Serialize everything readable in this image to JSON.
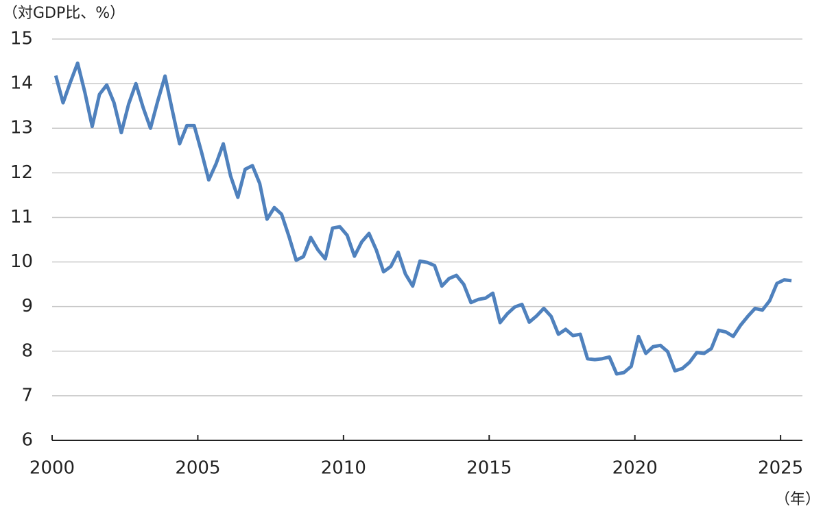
{
  "chart_data": {
    "type": "line",
    "y_axis_label": "（対GDP比、%）",
    "x_axis_label": "（年）",
    "x": [
      2000.125,
      2000.375,
      2000.625,
      2000.875,
      2001.125,
      2001.375,
      2001.625,
      2001.875,
      2002.125,
      2002.375,
      2002.625,
      2002.875,
      2003.125,
      2003.375,
      2003.625,
      2003.875,
      2004.125,
      2004.375,
      2004.625,
      2004.875,
      2005.125,
      2005.375,
      2005.625,
      2005.875,
      2006.125,
      2006.375,
      2006.625,
      2006.875,
      2007.125,
      2007.375,
      2007.625,
      2007.875,
      2008.125,
      2008.375,
      2008.625,
      2008.875,
      2009.125,
      2009.375,
      2009.625,
      2009.875,
      2010.125,
      2010.375,
      2010.625,
      2010.875,
      2011.125,
      2011.375,
      2011.625,
      2011.875,
      2012.125,
      2012.375,
      2012.625,
      2012.875,
      2013.125,
      2013.375,
      2013.625,
      2013.875,
      2014.125,
      2014.375,
      2014.625,
      2014.875,
      2015.125,
      2015.375,
      2015.625,
      2015.875,
      2016.125,
      2016.375,
      2016.625,
      2016.875,
      2017.125,
      2017.375,
      2017.625,
      2017.875,
      2018.125,
      2018.375,
      2018.625,
      2018.875,
      2019.125,
      2019.375,
      2019.625,
      2019.875,
      2020.125,
      2020.375,
      2020.625,
      2020.875,
      2021.125,
      2021.375,
      2021.625,
      2021.875,
      2022.125,
      2022.375,
      2022.625,
      2022.875,
      2023.125,
      2023.375,
      2023.625,
      2023.875,
      2024.125,
      2024.375,
      2024.625,
      2024.875,
      2025.125,
      2025.375
    ],
    "series": [
      {
        "color": "#4f81bd",
        "values": [
          14.18,
          13.57,
          14.03,
          14.46,
          13.8,
          13.04,
          13.76,
          13.97,
          13.57,
          12.9,
          13.54,
          14.0,
          13.46,
          13.0,
          13.61,
          14.17,
          13.4,
          12.65,
          13.06,
          13.06,
          12.47,
          11.84,
          12.2,
          12.65,
          11.93,
          11.45,
          12.08,
          12.16,
          11.76,
          10.96,
          11.22,
          11.07,
          10.58,
          10.04,
          10.12,
          10.55,
          10.27,
          10.07,
          10.76,
          10.79,
          10.6,
          10.13,
          10.45,
          10.64,
          10.27,
          9.78,
          9.9,
          10.22,
          9.73,
          9.46,
          10.02,
          9.99,
          9.92,
          9.46,
          9.63,
          9.7,
          9.5,
          9.09,
          9.16,
          9.19,
          9.3,
          8.64,
          8.84,
          8.99,
          9.05,
          8.65,
          8.79,
          8.96,
          8.78,
          8.38,
          8.49,
          8.35,
          8.38,
          7.83,
          7.81,
          7.83,
          7.87,
          7.49,
          7.52,
          7.66,
          8.33,
          7.95,
          8.1,
          8.13,
          7.99,
          7.56,
          7.61,
          7.75,
          7.97,
          7.95,
          8.06,
          8.47,
          8.43,
          8.33,
          8.58,
          8.78,
          8.96,
          8.92,
          9.13,
          9.52,
          9.6,
          9.58
        ]
      }
    ],
    "xlim": [
      2000,
      2025.75
    ],
    "xticks": [
      2000,
      2005,
      2010,
      2015,
      2020,
      2025
    ],
    "ylim": [
      6,
      15
    ],
    "yticks": [
      6,
      7,
      8,
      9,
      10,
      11,
      12,
      13,
      14,
      15
    ],
    "grid": true
  }
}
